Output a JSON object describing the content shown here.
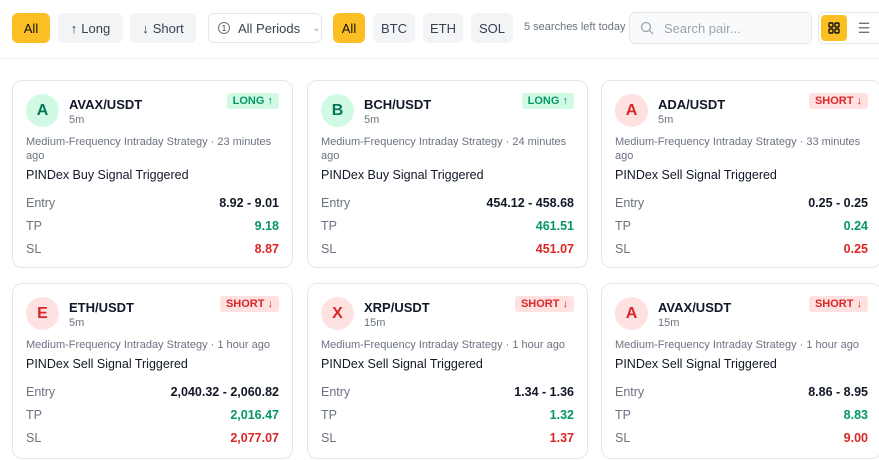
{
  "filters": {
    "direction": [
      {
        "label": "All",
        "icon": "",
        "active": true
      },
      {
        "label": "Long",
        "icon": "↑",
        "active": false
      },
      {
        "label": "Short",
        "icon": "↓",
        "active": false
      }
    ],
    "period": "All Periods",
    "coins": [
      {
        "label": "All",
        "active": true
      },
      {
        "label": "BTC",
        "active": false
      },
      {
        "label": "ETH",
        "active": false
      },
      {
        "label": "SOL",
        "active": false
      }
    ],
    "searches_left": "5 searches left today",
    "search_placeholder": "Search pair...",
    "view": "grid"
  },
  "labels": {
    "entry": "Entry",
    "tp": "TP",
    "sl": "SL"
  },
  "cards": [
    {
      "letter": "A",
      "pair": "AVAX/USDT",
      "tf": "5m",
      "dir": "long",
      "badge": "LONG ↑",
      "meta": "Medium-Frequency Intraday Strategy · 23 minutes ago",
      "signal": "PINDex Buy Signal Triggered",
      "entry": "8.92 - 9.01",
      "tp": "9.18",
      "sl": "8.87"
    },
    {
      "letter": "B",
      "pair": "BCH/USDT",
      "tf": "5m",
      "dir": "long",
      "badge": "LONG ↑",
      "meta": "Medium-Frequency Intraday Strategy · 24 minutes ago",
      "signal": "PINDex Buy Signal Triggered",
      "entry": "454.12 - 458.68",
      "tp": "461.51",
      "sl": "451.07"
    },
    {
      "letter": "A",
      "pair": "ADA/USDT",
      "tf": "5m",
      "dir": "short",
      "badge": "SHORT ↓",
      "meta": "Medium-Frequency Intraday Strategy · 33 minutes ago",
      "signal": "PINDex Sell Signal Triggered",
      "entry": "0.25 - 0.25",
      "tp": "0.24",
      "sl": "0.25"
    },
    {
      "letter": "E",
      "pair": "ETH/USDT",
      "tf": "5m",
      "dir": "short",
      "badge": "SHORT ↓",
      "meta": "Medium-Frequency Intraday Strategy · 1 hour ago",
      "signal": "PINDex Sell Signal Triggered",
      "entry": "2,040.32 - 2,060.82",
      "tp": "2,016.47",
      "sl": "2,077.07"
    },
    {
      "letter": "X",
      "pair": "XRP/USDT",
      "tf": "15m",
      "dir": "short",
      "badge": "SHORT ↓",
      "meta": "Medium-Frequency Intraday Strategy · 1 hour ago",
      "signal": "PINDex Sell Signal Triggered",
      "entry": "1.34 - 1.36",
      "tp": "1.32",
      "sl": "1.37"
    },
    {
      "letter": "A",
      "pair": "AVAX/USDT",
      "tf": "15m",
      "dir": "short",
      "badge": "SHORT ↓",
      "meta": "Medium-Frequency Intraday Strategy · 1 hour ago",
      "signal": "PINDex Sell Signal Triggered",
      "entry": "8.86 - 8.95",
      "tp": "8.83",
      "sl": "9.00"
    }
  ],
  "colors": {
    "accent": "#fbbf24",
    "long": "#059669",
    "short": "#dc2626"
  }
}
